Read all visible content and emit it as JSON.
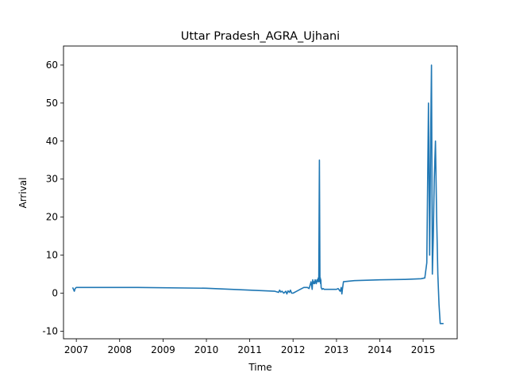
{
  "chart_data": {
    "type": "line",
    "title": "Uttar Pradesh_AGRA_Ujhani",
    "xlabel": "Time",
    "ylabel": "Arrival",
    "xlim": [
      "2006-09-15",
      "2015-10-15"
    ],
    "ylim": [
      -12,
      65
    ],
    "x_ticks": [
      "2007",
      "2008",
      "2009",
      "2010",
      "2011",
      "2012",
      "2013",
      "2014",
      "2015"
    ],
    "y_ticks": [
      -10,
      0,
      10,
      20,
      30,
      40,
      50,
      60
    ],
    "grid": false,
    "legend": "none",
    "line_color": "#1f77b4",
    "series": [
      {
        "x": [
          "2006-12-01",
          "2006-12-08",
          "2006-12-15",
          "2006-12-22",
          "2007-01-01",
          "2008-06-01",
          "2010-01-01",
          "2011-08-01",
          "2011-09-01",
          "2011-09-10",
          "2011-09-20",
          "2011-10-01",
          "2011-10-15",
          "2011-11-01",
          "2011-11-10",
          "2011-11-20",
          "2011-12-01",
          "2011-12-10",
          "2011-12-20",
          "2012-01-01",
          "2012-02-01",
          "2012-03-01",
          "2012-04-01",
          "2012-05-01",
          "2012-05-15",
          "2012-06-01",
          "2012-06-10",
          "2012-06-15",
          "2012-06-20",
          "2012-06-25",
          "2012-07-01",
          "2012-07-05",
          "2012-07-10",
          "2012-07-15",
          "2012-07-20",
          "2012-07-25",
          "2012-08-01",
          "2012-08-05",
          "2012-08-10",
          "2012-08-15",
          "2012-08-18",
          "2012-08-20",
          "2012-08-22",
          "2012-08-25",
          "2012-09-01",
          "2012-09-10",
          "2012-09-20",
          "2012-10-01",
          "2012-11-01",
          "2012-12-01",
          "2013-01-01",
          "2013-01-15",
          "2013-02-01",
          "2013-02-10",
          "2013-02-15",
          "2013-02-20",
          "2013-03-01",
          "2013-06-01",
          "2014-01-01",
          "2014-08-01",
          "2014-12-15",
          "2015-01-15",
          "2015-02-01",
          "2015-02-15",
          "2015-02-25",
          "2015-03-05",
          "2015-03-12",
          "2015-03-20",
          "2015-03-28",
          "2015-04-05",
          "2015-04-15",
          "2015-04-25",
          "2015-05-05",
          "2015-05-15",
          "2015-05-25",
          "2015-06-05",
          "2015-06-15",
          "2015-06-22"
        ],
        "y": [
          1.5,
          1.0,
          0.5,
          1.2,
          1.5,
          1.5,
          1.3,
          0.5,
          0.2,
          0.8,
          0.3,
          0.5,
          0.0,
          0.5,
          -0.2,
          0.6,
          0.2,
          0.8,
          0.0,
          0.0,
          0.5,
          1.0,
          1.5,
          1.5,
          1.2,
          3.0,
          1.0,
          3.5,
          2.5,
          3.0,
          2.5,
          3.5,
          3.0,
          2.5,
          3.5,
          3.0,
          4.0,
          3.0,
          35,
          3.0,
          4.0,
          2.5,
          3.5,
          1.5,
          1.0,
          1.2,
          1.0,
          1.0,
          1.0,
          1.0,
          1.0,
          1.2,
          0.5,
          1.5,
          -0.2,
          1.0,
          3.0,
          3.3,
          3.5,
          3.6,
          3.8,
          4.0,
          8.0,
          50,
          10,
          40,
          60,
          5.0,
          15,
          30,
          40,
          20,
          5.0,
          -3,
          -8,
          -8,
          -8,
          -8
        ]
      }
    ]
  }
}
